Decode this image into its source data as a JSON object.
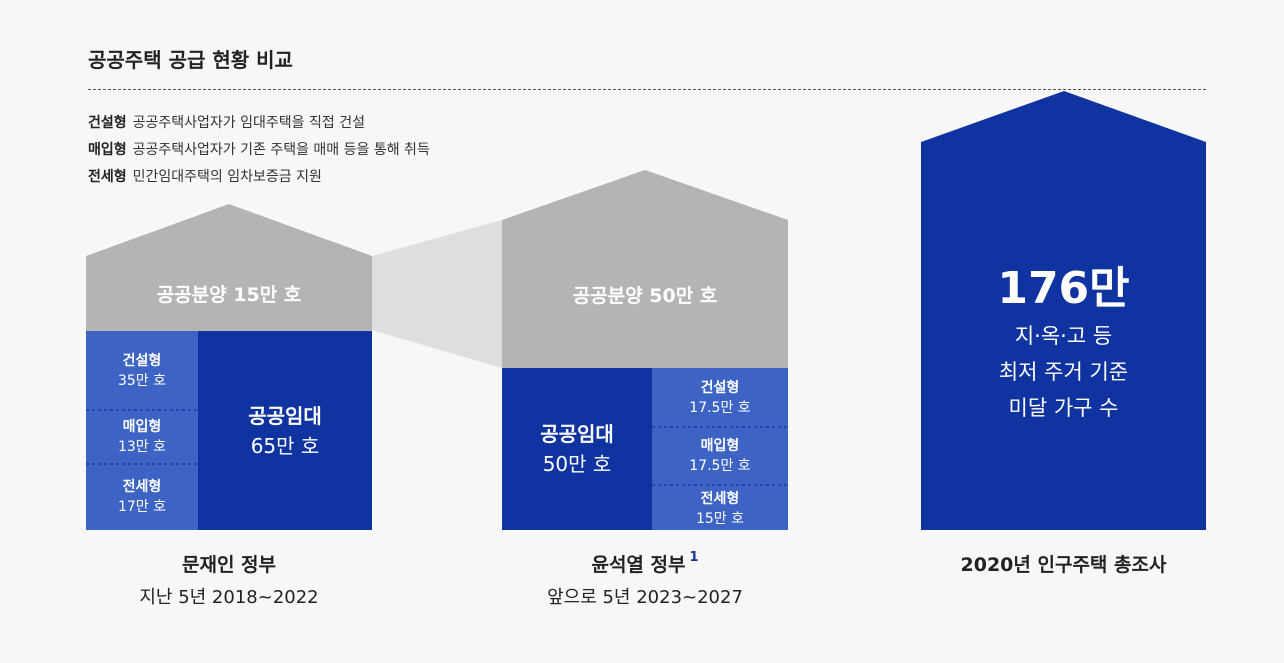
{
  "title": "공공주택 공급 현황 비교",
  "legend": [
    {
      "term": "건설형",
      "desc": "공공주택사업자가 임대주택을 직접 건설"
    },
    {
      "term": "매입형",
      "desc": "공공주택사업자가 기존 주택을 매매 등을 통해 취득"
    },
    {
      "term": "전세형",
      "desc": "민간임대주택의 임차보증금 지원"
    }
  ],
  "moon": {
    "sale_label": "공공분양 15만 호",
    "rental_title": "공공임대",
    "rental_value": "65만 호",
    "types": [
      {
        "name": "건설형",
        "value": "35만 호"
      },
      {
        "name": "매입형",
        "value": "13만 호"
      },
      {
        "name": "전세형",
        "value": "17만 호"
      }
    ],
    "caption_title": "문재인 정부",
    "caption_sub": "지난 5년 2018~2022"
  },
  "yoon": {
    "sale_label": "공공분양 50만 호",
    "rental_title": "공공임대",
    "rental_value": "50만 호",
    "types": [
      {
        "name": "건설형",
        "value": "17.5만 호"
      },
      {
        "name": "매입형",
        "value": "17.5만 호"
      },
      {
        "name": "전세형",
        "value": "15만 호"
      }
    ],
    "caption_title": "윤석열 정부",
    "footnote": "1",
    "caption_sub": "앞으로 5년 2023~2027"
  },
  "census": {
    "value": "176만",
    "desc_lines": [
      "지·옥·고 등",
      "최저 주거 기준",
      "미달 가구 수"
    ],
    "caption_title": "2020년 인구주택 총조사"
  },
  "colors": {
    "navy": "#0f33a0",
    "mid_blue": "#3d64c4",
    "gray": "#b4b4b4",
    "light_gray": "#dedede",
    "background": "#f7f7f7"
  }
}
